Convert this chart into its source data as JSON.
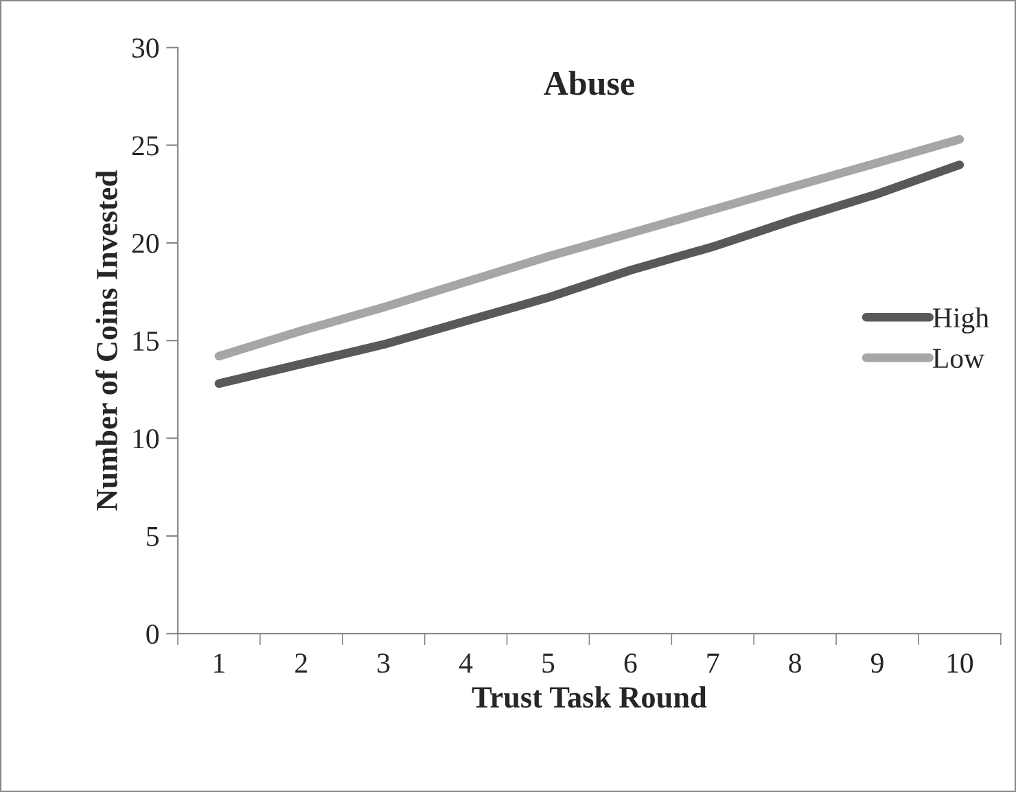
{
  "chart_data": {
    "type": "line",
    "title": "Abuse",
    "xlabel": "Trust Task Round",
    "ylabel": "Number of Coins Invested",
    "categories": [
      "1",
      "2",
      "3",
      "4",
      "5",
      "6",
      "7",
      "8",
      "9",
      "10"
    ],
    "series": [
      {
        "name": "High",
        "color": "#595959",
        "values": [
          12.8,
          13.8,
          14.8,
          16.0,
          17.2,
          18.6,
          19.8,
          21.2,
          22.5,
          24.0
        ]
      },
      {
        "name": "Low",
        "color": "#a6a6a6",
        "values": [
          14.2,
          15.5,
          16.7,
          18.0,
          19.3,
          20.5,
          21.7,
          22.9,
          24.1,
          25.3
        ]
      }
    ],
    "ylim": [
      0,
      30
    ],
    "yticks": [
      0,
      5,
      10,
      15,
      20,
      25,
      30
    ],
    "grid": false,
    "legend": "right",
    "marker": "none",
    "line_style": "solid"
  }
}
